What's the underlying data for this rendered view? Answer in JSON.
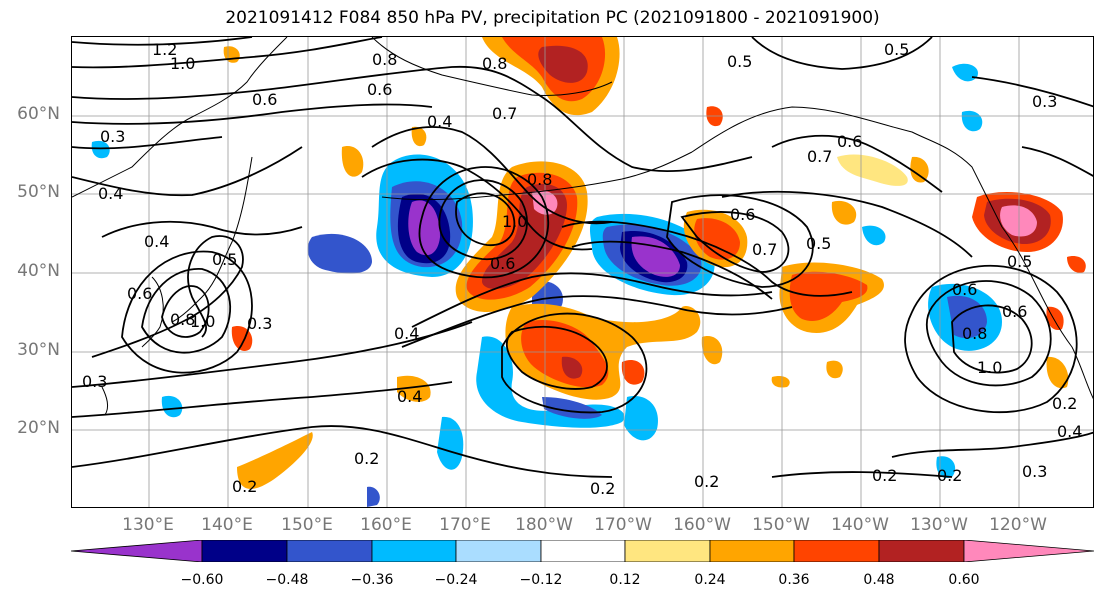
{
  "title": "2021091412 F084 850 hPa PV, precipitation PC (2021091800 - 2021091900)",
  "lat_labels": [
    "60°N",
    "50°N",
    "40°N",
    "30°N",
    "20°N"
  ],
  "lon_labels": [
    "130°E",
    "140°E",
    "150°E",
    "160°E",
    "170°E",
    "180°W",
    "170°W",
    "160°W",
    "150°W",
    "140°W",
    "130°W",
    "120°W"
  ],
  "colorbar": {
    "ticks": [
      "−0.60",
      "−0.48",
      "−0.36",
      "−0.24",
      "−0.12",
      "0.12",
      "0.24",
      "0.36",
      "0.48",
      "0.60"
    ],
    "colors": [
      "#9933cc",
      "#000088",
      "#3355cc",
      "#00bbff",
      "#aaddff",
      "#ffffff",
      "#ffe680",
      "#ffa500",
      "#ff4400",
      "#b22222",
      "#ff88bb"
    ]
  },
  "contour_labels": [
    "1.2",
    "1.0",
    "0.8",
    "0.8",
    "0.5",
    "0.6",
    "0.6",
    "0.5",
    "0.4",
    "0.7",
    "0.3",
    "0.4",
    "0.4",
    "0.5",
    "0.6",
    "0.8",
    "1.0",
    "0.8",
    "1.0",
    "0.6",
    "0.6",
    "0.7",
    "0.5",
    "0.7",
    "0.6",
    "0.5",
    "0.3",
    "0.4",
    "0.4",
    "0.2",
    "0.2",
    "0.2",
    "0.2",
    "0.2",
    "0.2",
    "0.3",
    "0.3",
    "0.6",
    "0.8",
    "1.0",
    "0.2",
    "0.4",
    "0.3",
    "0.6"
  ]
}
